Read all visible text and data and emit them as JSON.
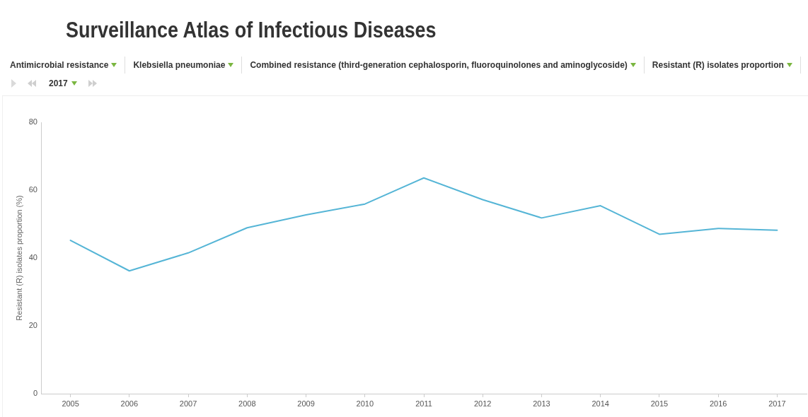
{
  "chart_data": {
    "type": "line",
    "title": "Surveillance Atlas of Infectious Diseases",
    "ylabel": "Resistant (R) isolates proportion (%)",
    "annotations": [
      "Antimicrobial resistance",
      "Klebsiella pneumoniae",
      "Combined resistance (third-generation cephalosporin, fluoroquinolones and aminoglycoside)",
      "Resistant (R) isolates proportion",
      "2017"
    ],
    "categories": [
      "2005",
      "2006",
      "2007",
      "2008",
      "2009",
      "2010",
      "2011",
      "2012",
      "2013",
      "2014",
      "2015",
      "2016",
      "2017"
    ],
    "values": [
      45.2,
      36.2,
      41.5,
      48.9,
      52.7,
      55.9,
      63.6,
      57.2,
      51.8,
      55.4,
      47.0,
      48.7,
      48.2
    ],
    "color": "#55b5d6",
    "ylim": [
      0,
      80
    ],
    "yticks": [
      0,
      20,
      40,
      60,
      80
    ],
    "marker": "none"
  }
}
